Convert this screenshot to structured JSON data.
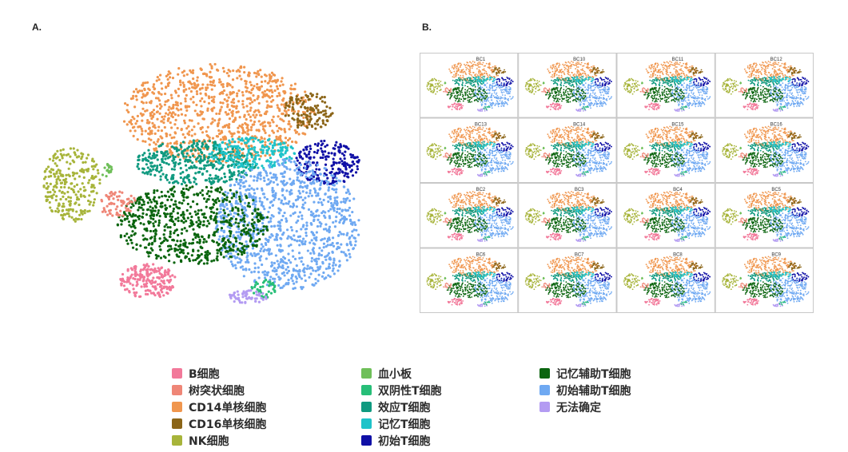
{
  "panel_a": {
    "label": "A."
  },
  "panel_b": {
    "label": "B.",
    "facet_titles": [
      "BC1",
      "BC10",
      "BC11",
      "BC12",
      "BC13",
      "BC14",
      "BC15",
      "BC16",
      "BC2",
      "BC3",
      "BC4",
      "BC5",
      "BC6",
      "BC7",
      "BC8",
      "BC9"
    ]
  },
  "legend": {
    "items": [
      {
        "label": "B细胞",
        "color": "#f2799a"
      },
      {
        "label": "树突状细胞",
        "color": "#ef8677"
      },
      {
        "label": "CD14单核细胞",
        "color": "#f0964e"
      },
      {
        "label": "CD16单核细胞",
        "color": "#8b6518"
      },
      {
        "label": "NK细胞",
        "color": "#a7b43a"
      },
      {
        "label": "血小板",
        "color": "#6fbf59"
      },
      {
        "label": "双阴性T细胞",
        "color": "#27be78"
      },
      {
        "label": "效应T细胞",
        "color": "#109a80"
      },
      {
        "label": "记忆T细胞",
        "color": "#1ec3c9"
      },
      {
        "label": "初始T细胞",
        "color": "#1010a6"
      },
      {
        "label": "记忆辅助T细胞",
        "color": "#0b650f"
      },
      {
        "label": "初始辅助T细胞",
        "color": "#6fa9f2"
      },
      {
        "label": "无法确定",
        "color": "#b39bf2"
      }
    ]
  },
  "chart_data": [
    {
      "type": "scatter",
      "title": "",
      "xlabel": "",
      "ylabel": "",
      "grid": false,
      "legend_placement": "bottom",
      "series": [
        {
          "name": "B细胞",
          "color": "#f2799a"
        },
        {
          "name": "树突状细胞",
          "color": "#ef8677"
        },
        {
          "name": "CD14单核细胞",
          "color": "#f0964e"
        },
        {
          "name": "CD16单核细胞",
          "color": "#8b6518"
        },
        {
          "name": "NK细胞",
          "color": "#a7b43a"
        },
        {
          "name": "血小板",
          "color": "#6fbf59"
        },
        {
          "name": "双阴性T细胞",
          "color": "#27be78"
        },
        {
          "name": "效应T细胞",
          "color": "#109a80"
        },
        {
          "name": "记忆T细胞",
          "color": "#1ec3c9"
        },
        {
          "name": "初始T细胞",
          "color": "#1010a6"
        },
        {
          "name": "记忆辅助T细胞",
          "color": "#0b650f"
        },
        {
          "name": "初始辅助T细胞",
          "color": "#6fa9f2"
        },
        {
          "name": "无法确定",
          "color": "#b39bf2"
        }
      ]
    },
    {
      "type": "scatter",
      "title": "",
      "layout": "4x4 facet grid",
      "grid": true,
      "facets": [
        "BC1",
        "BC10",
        "BC11",
        "BC12",
        "BC13",
        "BC14",
        "BC15",
        "BC16",
        "BC2",
        "BC3",
        "BC4",
        "BC5",
        "BC6",
        "BC7",
        "BC8",
        "BC9"
      ]
    }
  ]
}
